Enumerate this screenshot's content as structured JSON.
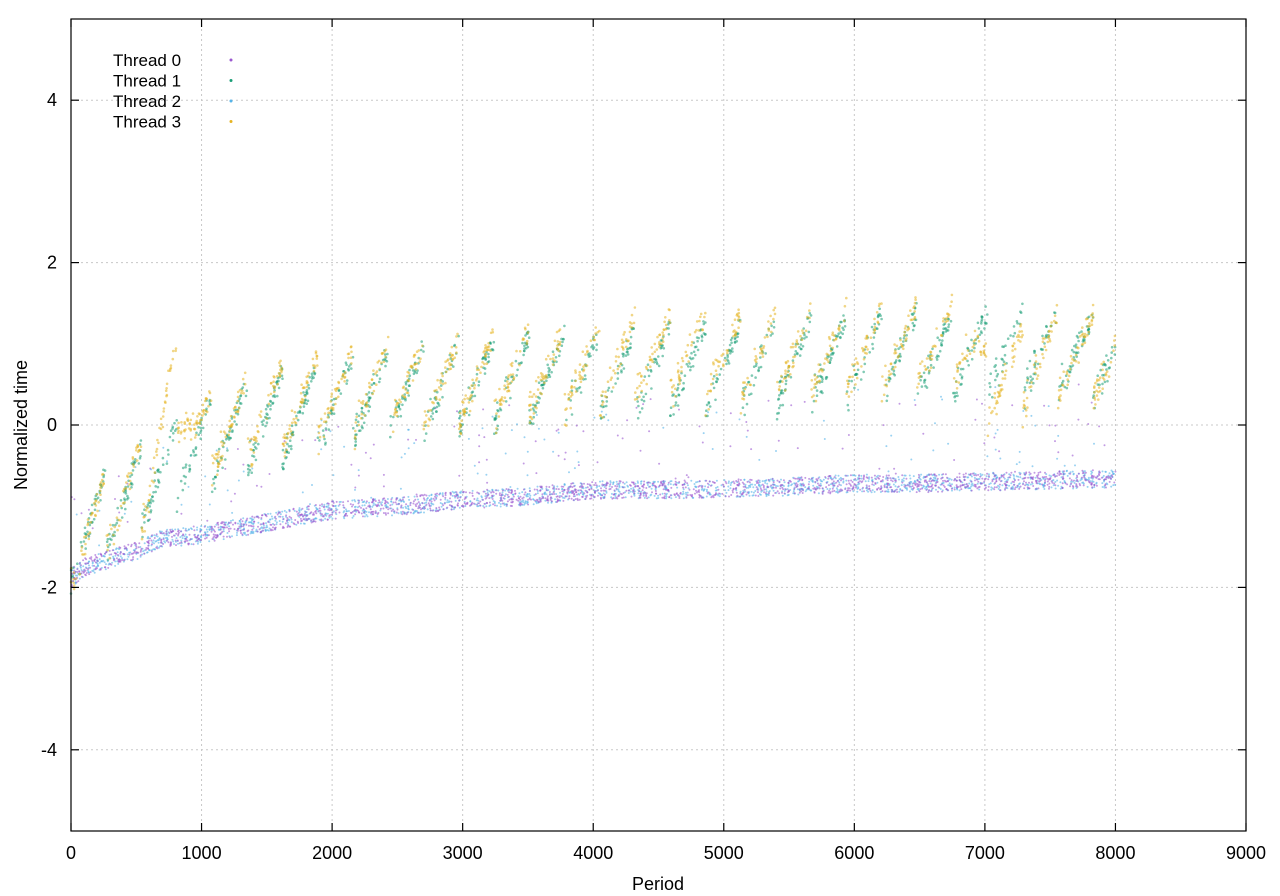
{
  "chart_data": {
    "type": "scatter",
    "title": "",
    "xlabel": "Period",
    "ylabel": "Normalized time",
    "xlim": [
      0,
      9000
    ],
    "ylim": [
      -5,
      5
    ],
    "x_ticks": [
      0,
      1000,
      2000,
      3000,
      4000,
      5000,
      6000,
      7000,
      8000,
      9000
    ],
    "y_ticks": [
      -4,
      -2,
      0,
      2,
      4
    ],
    "x_tick_labels": [
      "0",
      "1000",
      "2000",
      "3000",
      "4000",
      "5000",
      "6000",
      "7000",
      "8000",
      "9000"
    ],
    "y_tick_labels": [
      "-4",
      "-2",
      "0",
      "2",
      "4"
    ],
    "grid": true,
    "legend_position": "top-left",
    "series": [
      {
        "name": "Thread 0",
        "color": "#9b59d0",
        "description_points": [
          [
            0,
            -1.9
          ],
          [
            100,
            -1.75
          ],
          [
            300,
            -1.65
          ],
          [
            500,
            -1.55
          ],
          [
            700,
            -1.4
          ],
          [
            1000,
            -1.35
          ],
          [
            1500,
            -1.2
          ],
          [
            2000,
            -1.05
          ],
          [
            2500,
            -1.0
          ],
          [
            3000,
            -0.92
          ],
          [
            3500,
            -0.88
          ],
          [
            4000,
            -0.8
          ],
          [
            4500,
            -0.8
          ],
          [
            5000,
            -0.78
          ],
          [
            5500,
            -0.76
          ],
          [
            6000,
            -0.72
          ],
          [
            6500,
            -0.72
          ],
          [
            7000,
            -0.7
          ],
          [
            7500,
            -0.68
          ],
          [
            8000,
            -0.66
          ]
        ]
      },
      {
        "name": "Thread 1",
        "color": "#1a9e77",
        "description_points": [
          [
            50,
            -0.9
          ],
          [
            300,
            -0.5
          ],
          [
            600,
            -0.2
          ],
          [
            1000,
            0.3
          ],
          [
            1500,
            0.6
          ],
          [
            2000,
            0.8
          ],
          [
            2500,
            0.95
          ],
          [
            3000,
            1.0
          ],
          [
            3500,
            1.1
          ],
          [
            4000,
            1.15
          ],
          [
            4500,
            1.2
          ],
          [
            5000,
            1.25
          ],
          [
            5500,
            1.3
          ],
          [
            6000,
            1.35
          ],
          [
            6500,
            1.4
          ],
          [
            7000,
            1.4
          ],
          [
            7500,
            1.45
          ],
          [
            8000,
            1.35
          ]
        ]
      },
      {
        "name": "Thread 2",
        "color": "#56b4e9",
        "description_points": [
          [
            0,
            -1.9
          ],
          [
            100,
            -1.75
          ],
          [
            300,
            -1.65
          ],
          [
            500,
            -1.55
          ],
          [
            700,
            -1.4
          ],
          [
            1000,
            -1.35
          ],
          [
            1500,
            -1.2
          ],
          [
            2000,
            -1.05
          ],
          [
            2500,
            -1.0
          ],
          [
            3000,
            -0.92
          ],
          [
            3500,
            -0.88
          ],
          [
            4000,
            -0.8
          ],
          [
            4500,
            -0.8
          ],
          [
            5000,
            -0.78
          ],
          [
            5500,
            -0.76
          ],
          [
            6000,
            -0.72
          ],
          [
            6500,
            -0.72
          ],
          [
            7000,
            -0.7
          ],
          [
            7500,
            -0.68
          ],
          [
            8000,
            -0.66
          ]
        ]
      },
      {
        "name": "Thread 3",
        "color": "#e6b422",
        "description_points": [
          [
            50,
            -0.9
          ],
          [
            300,
            -0.5
          ],
          [
            600,
            -0.1
          ],
          [
            780,
            1.0
          ],
          [
            1000,
            0.4
          ],
          [
            1500,
            0.7
          ],
          [
            2000,
            0.9
          ],
          [
            2500,
            1.0
          ],
          [
            3000,
            1.05
          ],
          [
            3500,
            1.2
          ],
          [
            4000,
            1.25
          ],
          [
            4300,
            1.35
          ],
          [
            4700,
            1.4
          ],
          [
            5000,
            1.35
          ],
          [
            5500,
            1.4
          ],
          [
            6000,
            1.45
          ],
          [
            6900,
            1.55
          ],
          [
            7000,
            1.0
          ],
          [
            7500,
            1.4
          ],
          [
            8000,
            1.35
          ]
        ]
      }
    ]
  }
}
